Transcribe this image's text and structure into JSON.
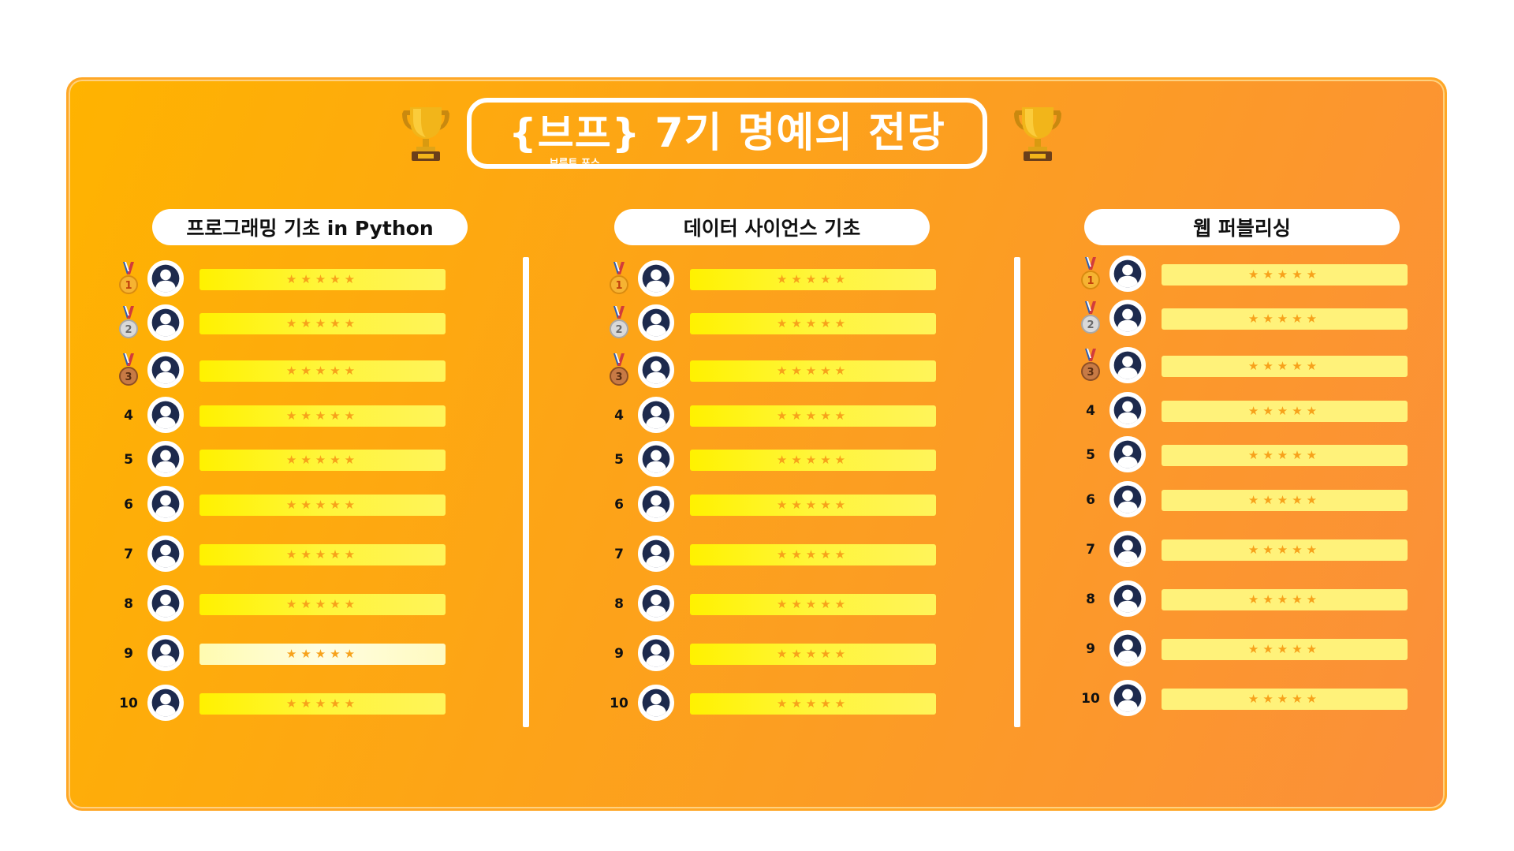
{
  "title": {
    "brand": "{브프}",
    "brand_sub": "브루트 포스",
    "main": "7기 명예의 전당"
  },
  "trophy_icon": "trophy-icon",
  "colors": {
    "accent": "#fb8f3a",
    "bar": "#fff200",
    "stars": "#f7a21b"
  },
  "columns": [
    {
      "title": "프로그래밍 기초 in Python",
      "rows": [
        {
          "rank": "1",
          "medal": "gold",
          "stars": "★★★★★"
        },
        {
          "rank": "2",
          "medal": "silver",
          "stars": "★★★★★"
        },
        {
          "rank": "3",
          "medal": "bronze",
          "stars": "★★★★★"
        },
        {
          "rank": "4",
          "medal": "",
          "stars": "★★★★★"
        },
        {
          "rank": "5",
          "medal": "",
          "stars": "★★★★★"
        },
        {
          "rank": "6",
          "medal": "",
          "stars": "★★★★★"
        },
        {
          "rank": "7",
          "medal": "",
          "stars": "★★★★★"
        },
        {
          "rank": "8",
          "medal": "",
          "stars": "★★★★★"
        },
        {
          "rank": "9",
          "medal": "",
          "stars": "★★★★★"
        },
        {
          "rank": "10",
          "medal": "",
          "stars": "★★★★★"
        }
      ]
    },
    {
      "title": "데이터 사이언스 기초",
      "rows": [
        {
          "rank": "1",
          "medal": "gold",
          "stars": "★★★★★"
        },
        {
          "rank": "2",
          "medal": "silver",
          "stars": "★★★★★"
        },
        {
          "rank": "3",
          "medal": "bronze",
          "stars": "★★★★★"
        },
        {
          "rank": "4",
          "medal": "",
          "stars": "★★★★★"
        },
        {
          "rank": "5",
          "medal": "",
          "stars": "★★★★★"
        },
        {
          "rank": "6",
          "medal": "",
          "stars": "★★★★★"
        },
        {
          "rank": "7",
          "medal": "",
          "stars": "★★★★★"
        },
        {
          "rank": "8",
          "medal": "",
          "stars": "★★★★★"
        },
        {
          "rank": "9",
          "medal": "",
          "stars": "★★★★★"
        },
        {
          "rank": "10",
          "medal": "",
          "stars": "★★★★★"
        }
      ]
    },
    {
      "title": "웹 퍼블리싱",
      "rows": [
        {
          "rank": "1",
          "medal": "gold",
          "stars": "★★★★★"
        },
        {
          "rank": "2",
          "medal": "silver",
          "stars": "★★★★★"
        },
        {
          "rank": "3",
          "medal": "bronze",
          "stars": "★★★★★"
        },
        {
          "rank": "4",
          "medal": "",
          "stars": "★★★★★"
        },
        {
          "rank": "5",
          "medal": "",
          "stars": "★★★★★"
        },
        {
          "rank": "6",
          "medal": "",
          "stars": "★★★★★"
        },
        {
          "rank": "7",
          "medal": "",
          "stars": "★★★★★"
        },
        {
          "rank": "8",
          "medal": "",
          "stars": "★★★★★"
        },
        {
          "rank": "9",
          "medal": "",
          "stars": "★★★★★"
        },
        {
          "rank": "10",
          "medal": "",
          "stars": "★★★★★"
        }
      ]
    }
  ]
}
